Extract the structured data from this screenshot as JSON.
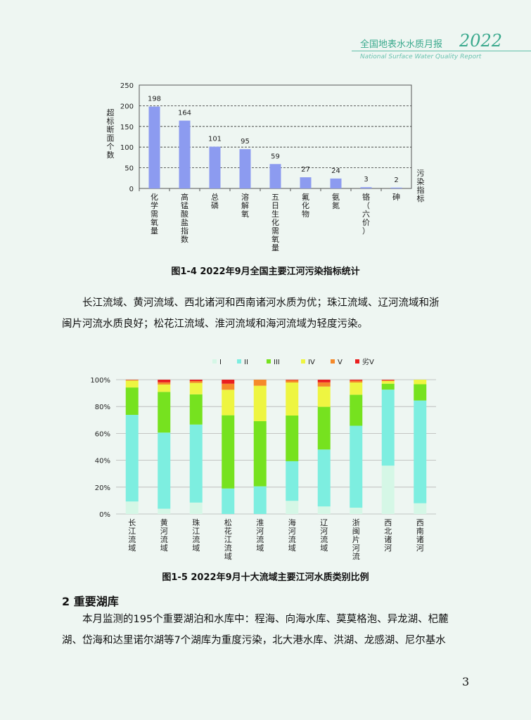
{
  "header": {
    "title": "全国地表水水质月报",
    "year": "2022",
    "subtitle": "National Surface Water Quality Report"
  },
  "chart_data": [
    {
      "type": "bar",
      "categories": [
        "化学需氧量",
        "高锰酸盐指数",
        "总磷",
        "溶解氧",
        "五日生化需氧量",
        "氟化物",
        "氨氮",
        "铬（六价）",
        "砷"
      ],
      "values": [
        198,
        164,
        101,
        95,
        59,
        27,
        24,
        3,
        2
      ],
      "ylabel": "超标断面个数",
      "xlabel": "污染指标",
      "ylim": [
        0,
        250
      ],
      "yticks": [
        "0",
        "50",
        "100",
        "150",
        "200",
        "250"
      ],
      "grid": true,
      "color": "#8c9bf0"
    },
    {
      "type": "bar",
      "stacked": true,
      "percent": true,
      "categories": [
        "长江流域",
        "黄河流域",
        "珠江流域",
        "松花江流域",
        "淮河流域",
        "海河流域",
        "辽河流域",
        "浙闽片河流",
        "西北诸河",
        "西南诸河"
      ],
      "yticks": [
        "0%",
        "20%",
        "40%",
        "60%",
        "80%",
        "100%"
      ],
      "legend_position": "top",
      "series": [
        {
          "name": "I",
          "color": "#d5f7e6",
          "values": [
            9.3,
            3.9,
            8.5,
            0,
            0,
            9.8,
            5.6,
            4.7,
            36.0,
            8.0
          ]
        },
        {
          "name": "II",
          "color": "#7deee0",
          "values": [
            64.5,
            56.7,
            58.1,
            19.0,
            20.6,
            29.5,
            42.4,
            61.0,
            56.6,
            76.5
          ]
        },
        {
          "name": "III",
          "color": "#76e21f",
          "values": [
            20.4,
            30.3,
            22.5,
            54.5,
            48.5,
            34.0,
            31.8,
            23.1,
            4.4,
            12.1
          ]
        },
        {
          "name": "IV",
          "color": "#eef541",
          "values": [
            5.2,
            5.5,
            8.5,
            19.0,
            26.4,
            24.6,
            15.1,
            9.1,
            2.0,
            3.4
          ]
        },
        {
          "name": "V",
          "color": "#f58a2a",
          "values": [
            0.4,
            1.6,
            1.4,
            4.5,
            4.5,
            1.7,
            3.1,
            1.4,
            0.6,
            0
          ]
        },
        {
          "name": "劣V",
          "color": "#ea1f1f",
          "values": [
            0.2,
            2.0,
            1.0,
            3.0,
            0,
            0.4,
            2.0,
            0.7,
            0.4,
            0
          ]
        }
      ]
    }
  ],
  "captions": {
    "fig1": "图1-4  2022年9月全国主要江河污染指标统计",
    "fig2": "图1-5  2022年9月十大流域主要江河水质类别比例"
  },
  "paragraphs": {
    "p1_line1": "长江流域、黄河流域、西北诸河和西南诸河水质为优；珠江流域、辽河流域和浙",
    "p1_line2": "闽片河流水质良好；松花江流域、淮河流域和海河流域为轻度污染。",
    "section_heading": "2 重要湖库",
    "p2_line1": "本月监测的195个重要湖泊和水库中：程海、向海水库、莫莫格泡、异龙湖、杞麓",
    "p2_line2": "湖、岱海和达里诺尔湖等7个湖库为重度污染，北大港水库、洪湖、龙感湖、尼尔基水"
  },
  "page_number": "3"
}
